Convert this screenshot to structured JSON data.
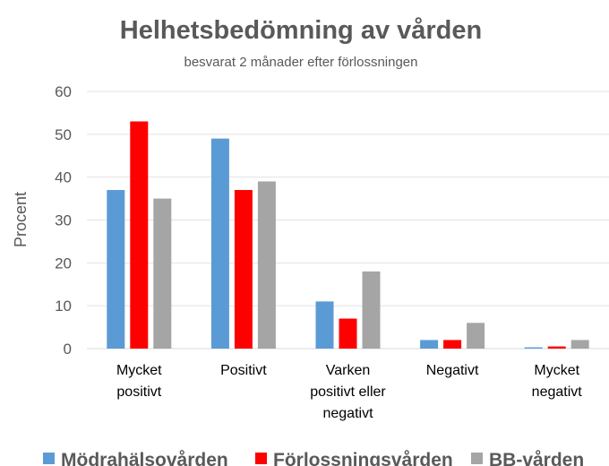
{
  "chart_data": {
    "type": "bar",
    "title": "Helhetsbedömning av vården",
    "subtitle": "besvarat 2 månader efter förlossningen",
    "ylabel": "Procent",
    "xlabel": "",
    "ylim": [
      0,
      60
    ],
    "yticks": [
      0,
      10,
      20,
      30,
      40,
      50,
      60
    ],
    "grid": true,
    "legend_position": "bottom",
    "categories": [
      [
        "Mycket",
        "positivt"
      ],
      [
        "Positivt"
      ],
      [
        "Varken",
        "positivt eller",
        "negativt"
      ],
      [
        "Negativt"
      ],
      [
        "Mycket",
        "negativt"
      ]
    ],
    "series": [
      {
        "name": "Mödrahälsovården",
        "color": "#5B9BD5",
        "values": [
          37,
          49,
          11,
          2,
          0.3
        ]
      },
      {
        "name": "Förlossningsvården",
        "color": "#FF0000",
        "values": [
          53,
          37,
          7,
          2,
          0.5
        ]
      },
      {
        "name": "BB-vården",
        "color": "#A5A5A5",
        "values": [
          35,
          39,
          18,
          6,
          2
        ]
      }
    ]
  }
}
